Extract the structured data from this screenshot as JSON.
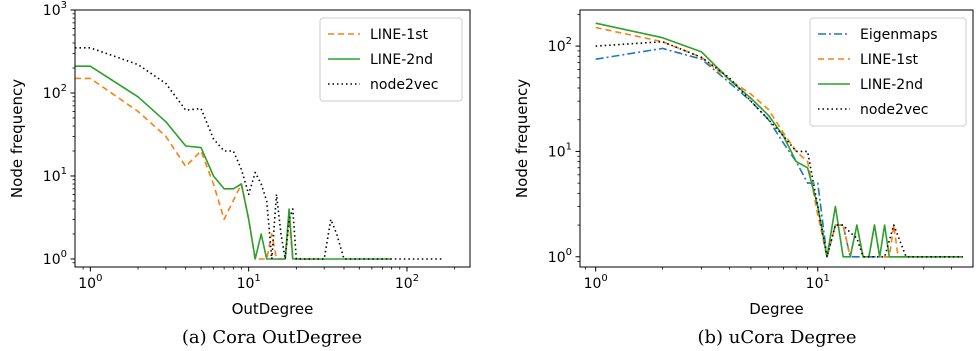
{
  "colors": {
    "Eigenmaps": "#1f77b4",
    "LINE-1st": "#ff7f0e",
    "LINE-2nd": "#2ca02c",
    "node2vec": "#000000"
  },
  "chart_data": [
    {
      "type": "line",
      "log_x": true,
      "log_y": true,
      "xlabel": "OutDegree",
      "ylabel": "Node frequency",
      "caption": "(a) Cora OutDegree",
      "xlim": [
        0.8,
        250
      ],
      "ylim": [
        0.8,
        1000
      ],
      "xticks": [
        {
          "base": "10",
          "exp": "0",
          "value": 1
        },
        {
          "base": "10",
          "exp": "1",
          "value": 10
        },
        {
          "base": "10",
          "exp": "2",
          "value": 100
        }
      ],
      "yticks": [
        {
          "base": "10",
          "exp": "0",
          "value": 1
        },
        {
          "base": "10",
          "exp": "1",
          "value": 10
        },
        {
          "base": "10",
          "exp": "2",
          "value": 100
        },
        {
          "base": "10",
          "exp": "3",
          "value": 1000
        }
      ],
      "legend_position": "top-right",
      "series": [
        {
          "name": "LINE-1st",
          "style": "dashed",
          "x": [
            0.8,
            1,
            2,
            3,
            4,
            5,
            6,
            7,
            9,
            10,
            11,
            12,
            13,
            14,
            15,
            16,
            17,
            18,
            19,
            20,
            21,
            23,
            25
          ],
          "y": [
            150,
            150,
            60,
            30,
            13,
            20,
            8,
            3,
            8,
            3,
            1,
            1,
            1,
            2,
            1,
            1,
            1,
            3,
            1,
            1,
            1,
            1,
            1
          ]
        },
        {
          "name": "LINE-2nd",
          "style": "solid",
          "x": [
            0.8,
            1,
            2,
            3,
            4,
            5,
            6,
            7,
            8,
            9,
            10,
            11,
            12,
            13,
            14,
            15,
            16,
            17,
            18,
            19,
            20,
            21,
            23,
            25,
            30,
            40,
            50,
            80
          ],
          "y": [
            210,
            210,
            90,
            45,
            23,
            22,
            10,
            7,
            7,
            8,
            3,
            1,
            2,
            1,
            1,
            1,
            1,
            1,
            4,
            1,
            1,
            1,
            1,
            1,
            1,
            1,
            1,
            1
          ]
        },
        {
          "name": "node2vec",
          "style": "dotted",
          "x": [
            0.8,
            1,
            2,
            3,
            4,
            5,
            6,
            7,
            8,
            9,
            10,
            11,
            12,
            13,
            14,
            15,
            16,
            17,
            18,
            19,
            20,
            22,
            25,
            30,
            33,
            36,
            40,
            50,
            80,
            120,
            170
          ],
          "y": [
            350,
            350,
            220,
            130,
            62,
            65,
            28,
            20,
            20,
            12,
            6,
            11,
            8,
            5,
            1,
            6,
            2,
            1,
            3,
            4,
            1,
            1,
            1,
            1,
            3,
            2,
            1,
            1,
            1,
            1,
            1
          ]
        }
      ]
    },
    {
      "type": "line",
      "log_x": true,
      "log_y": true,
      "xlabel": "Degree",
      "ylabel": "Node frequency",
      "caption": "(b) uCora Degree",
      "xlim": [
        0.85,
        50
      ],
      "ylim": [
        0.8,
        220
      ],
      "xticks": [
        {
          "base": "10",
          "exp": "0",
          "value": 1
        },
        {
          "base": "10",
          "exp": "1",
          "value": 10
        }
      ],
      "yticks": [
        {
          "base": "10",
          "exp": "0",
          "value": 1
        },
        {
          "base": "10",
          "exp": "1",
          "value": 10
        },
        {
          "base": "10",
          "exp": "2",
          "value": 100
        }
      ],
      "legend_position": "top-right",
      "series": [
        {
          "name": "Eigenmaps",
          "style": "dashdot",
          "x": [
            1,
            2,
            3,
            4,
            5,
            6,
            7,
            8,
            9,
            10,
            11,
            12,
            13,
            14,
            15,
            16,
            17,
            18,
            20,
            25,
            30,
            45
          ],
          "y": [
            75,
            95,
            75,
            45,
            30,
            20,
            12,
            8,
            5,
            5,
            1,
            2,
            2,
            1,
            1,
            1,
            1,
            1,
            1,
            1,
            1,
            1
          ]
        },
        {
          "name": "LINE-1st",
          "style": "dashed",
          "x": [
            1,
            2,
            3,
            4,
            5,
            6,
            7,
            8,
            9,
            10,
            11,
            12,
            13,
            14,
            15,
            16,
            17,
            18,
            19,
            20,
            21,
            22,
            23,
            25,
            30,
            45
          ],
          "y": [
            150,
            110,
            78,
            48,
            35,
            25,
            15,
            10,
            8,
            2.5,
            1,
            2,
            2,
            1,
            2,
            1,
            1,
            2,
            1,
            1,
            1,
            2,
            1,
            1,
            1,
            1
          ]
        },
        {
          "name": "LINE-2nd",
          "style": "solid",
          "x": [
            1,
            2,
            3,
            4,
            5,
            6,
            7,
            8,
            9,
            10,
            11,
            12,
            13,
            14,
            15,
            16,
            17,
            18,
            19,
            20,
            21,
            22,
            23,
            25,
            30,
            45
          ],
          "y": [
            165,
            120,
            88,
            48,
            32,
            22,
            14,
            8,
            7,
            3,
            1,
            3,
            1,
            1,
            2,
            1,
            1,
            2,
            1,
            2,
            1,
            1,
            1,
            1,
            1,
            1
          ]
        },
        {
          "name": "node2vec",
          "style": "dotted",
          "x": [
            1,
            2,
            3,
            4,
            5,
            6,
            7,
            8,
            9,
            10,
            11,
            12,
            13,
            14,
            15,
            16,
            17,
            18,
            19,
            20,
            22,
            25,
            30,
            45
          ],
          "y": [
            100,
            110,
            78,
            50,
            30,
            20,
            14,
            10,
            10,
            3,
            1,
            2,
            2,
            1.7,
            1.5,
            1,
            1,
            1,
            1,
            1,
            2,
            1,
            1,
            1
          ]
        }
      ]
    }
  ]
}
